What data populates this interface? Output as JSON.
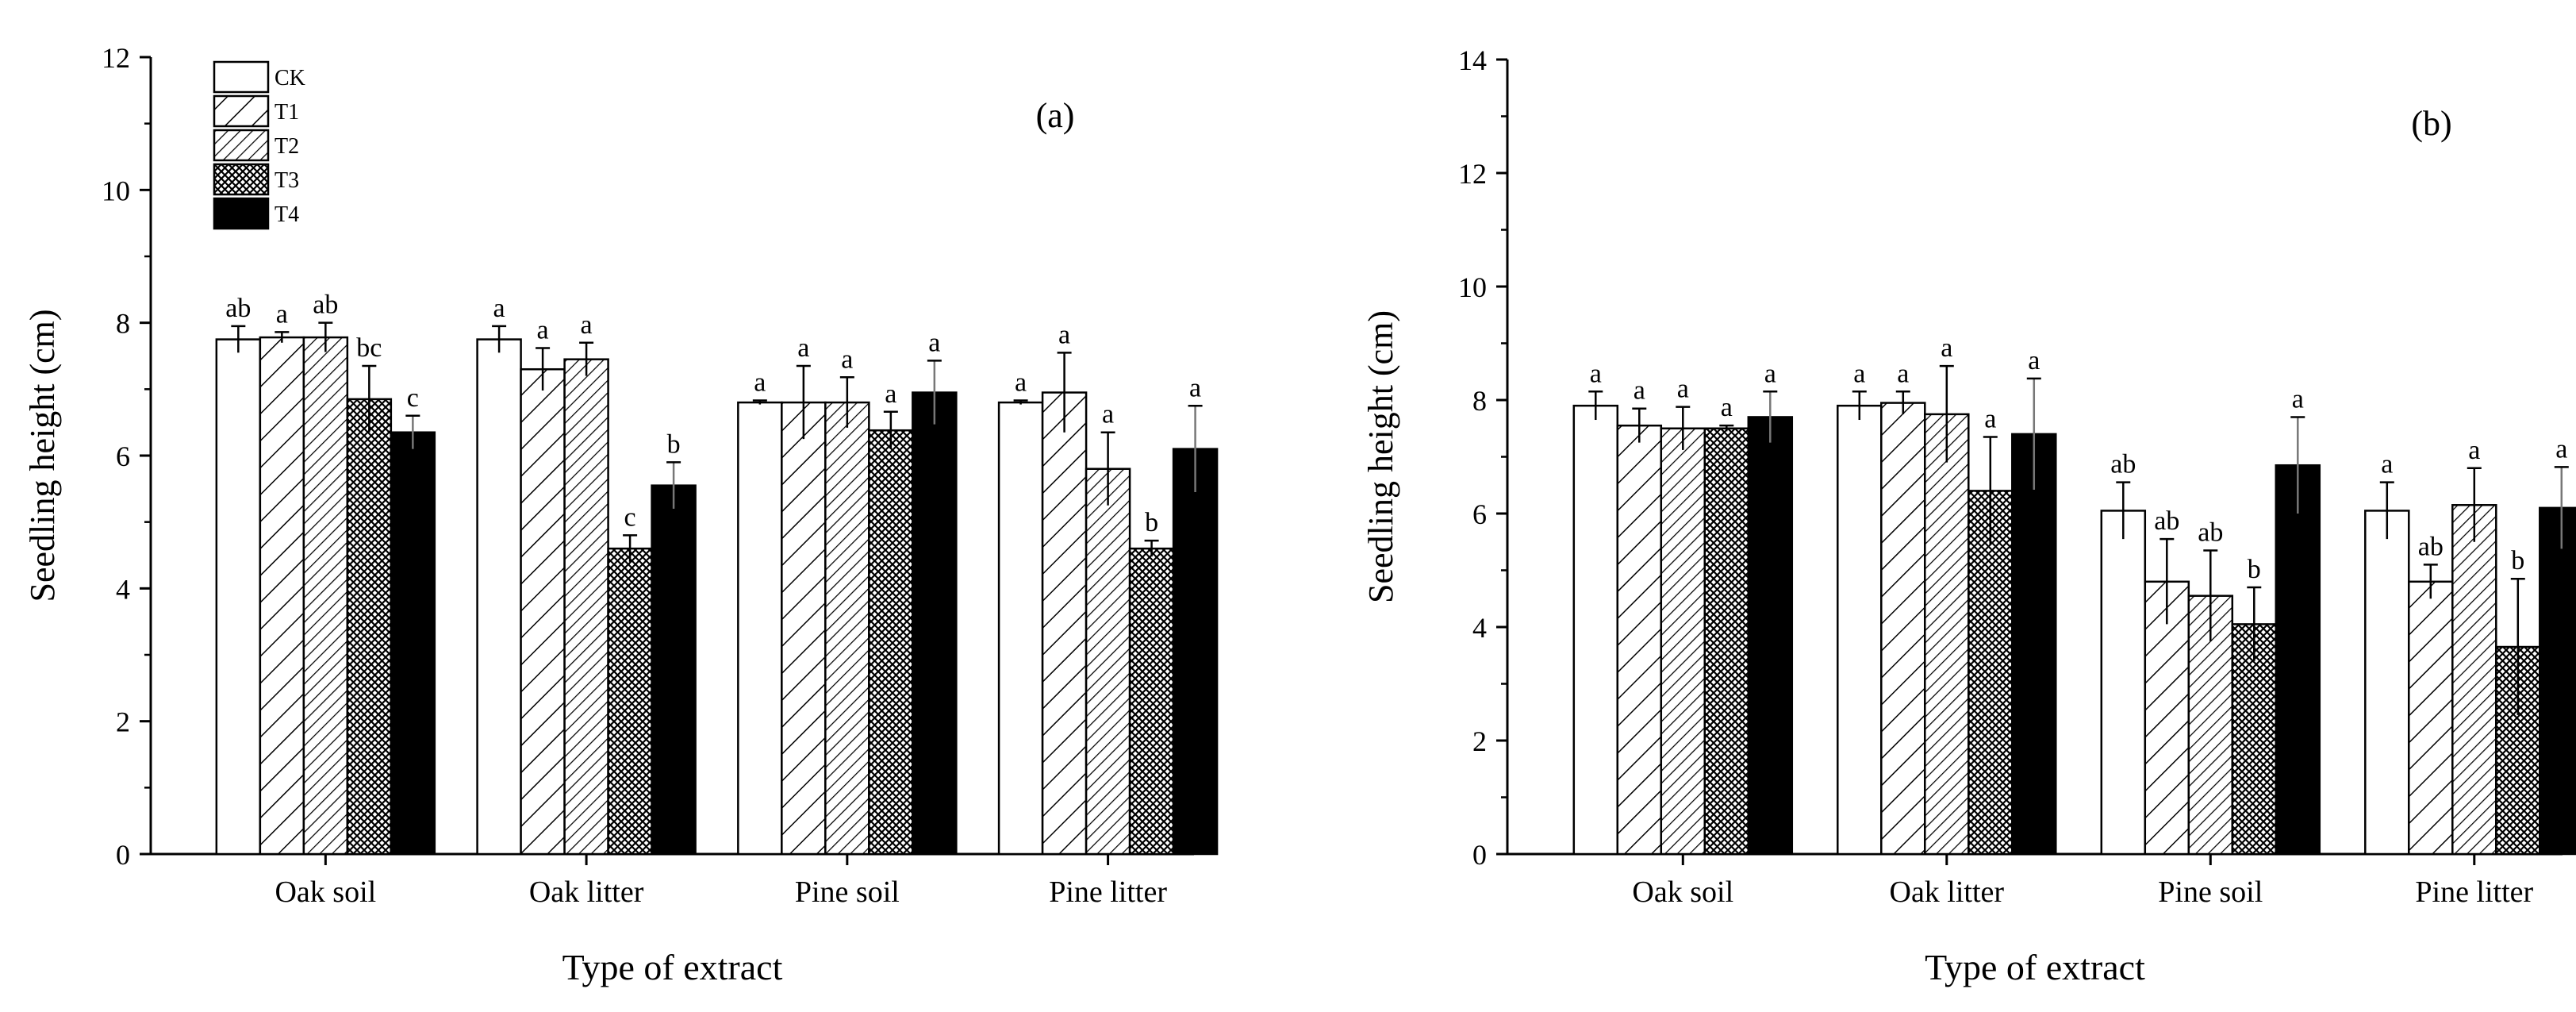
{
  "chart_data": [
    {
      "type": "bar",
      "panel_label": "(a)",
      "xlabel": "Type of extract",
      "ylabel": "Seedling height (cm)",
      "ylim": [
        0,
        12
      ],
      "yticks": [
        0,
        2,
        4,
        6,
        8,
        10,
        12
      ],
      "categories": [
        "Oak soil",
        "Oak litter",
        "Pine soil",
        "Pine litter"
      ],
      "series": [
        {
          "name": "CK",
          "pattern": "open",
          "values": [
            7.75,
            7.75,
            6.8,
            6.8
          ],
          "errors": [
            0.2,
            0.2,
            0.03,
            0.03
          ],
          "letters": [
            "ab",
            "a",
            "a",
            "a"
          ]
        },
        {
          "name": "T1",
          "pattern": "hatch",
          "values": [
            7.78,
            7.3,
            6.8,
            6.95
          ],
          "errors": [
            0.08,
            0.32,
            0.55,
            0.6
          ],
          "letters": [
            "a",
            "a",
            "a",
            "a"
          ]
        },
        {
          "name": "T2",
          "pattern": "dense-hatch",
          "values": [
            7.78,
            7.45,
            6.8,
            5.8
          ],
          "errors": [
            0.22,
            0.25,
            0.38,
            0.55
          ],
          "letters": [
            "ab",
            "a",
            "a",
            "a"
          ]
        },
        {
          "name": "T3",
          "pattern": "crosshatch",
          "values": [
            6.85,
            4.6,
            6.38,
            4.6
          ],
          "errors": [
            0.5,
            0.2,
            0.28,
            0.12
          ],
          "letters": [
            "bc",
            "c",
            "a",
            "b"
          ]
        },
        {
          "name": "T4",
          "pattern": "solid",
          "values": [
            6.35,
            5.55,
            6.95,
            6.1
          ],
          "errors": [
            0.25,
            0.35,
            0.48,
            0.65
          ],
          "letters": [
            "c",
            "b",
            "a",
            "a"
          ]
        }
      ],
      "legend": {
        "entries": [
          "CK",
          "T1",
          "T2",
          "T3",
          "T4"
        ],
        "placement": "top-left"
      }
    },
    {
      "type": "bar",
      "panel_label": "(b)",
      "xlabel": "Type of extract",
      "ylabel": "Seedling height (cm)",
      "ylim": [
        0,
        14
      ],
      "yticks": [
        0,
        2,
        4,
        6,
        8,
        10,
        12,
        14
      ],
      "categories": [
        "Oak soil",
        "Oak litter",
        "Pine soil",
        "Pine litter"
      ],
      "series": [
        {
          "name": "CK",
          "pattern": "open",
          "values": [
            7.9,
            7.9,
            6.05,
            6.05
          ],
          "errors": [
            0.25,
            0.25,
            0.5,
            0.5
          ],
          "letters": [
            "a",
            "a",
            "ab",
            "a"
          ]
        },
        {
          "name": "T1",
          "pattern": "hatch",
          "values": [
            7.55,
            7.95,
            4.8,
            4.8
          ],
          "errors": [
            0.3,
            0.2,
            0.75,
            0.3
          ],
          "letters": [
            "a",
            "a",
            "ab",
            "ab"
          ]
        },
        {
          "name": "T2",
          "pattern": "dense-hatch",
          "values": [
            7.5,
            7.75,
            4.55,
            6.15
          ],
          "errors": [
            0.38,
            0.85,
            0.8,
            0.65
          ],
          "letters": [
            "a",
            "a",
            "ab",
            "a"
          ]
        },
        {
          "name": "T3",
          "pattern": "crosshatch",
          "values": [
            7.5,
            6.4,
            4.05,
            3.65
          ],
          "errors": [
            0.05,
            0.95,
            0.65,
            1.2
          ],
          "letters": [
            "a",
            "a",
            "b",
            "b"
          ]
        },
        {
          "name": "T4",
          "pattern": "solid",
          "values": [
            7.7,
            7.4,
            6.85,
            6.1
          ],
          "errors": [
            0.45,
            0.98,
            0.85,
            0.72
          ],
          "letters": [
            "a",
            "a",
            "a",
            "a"
          ]
        }
      ]
    }
  ]
}
